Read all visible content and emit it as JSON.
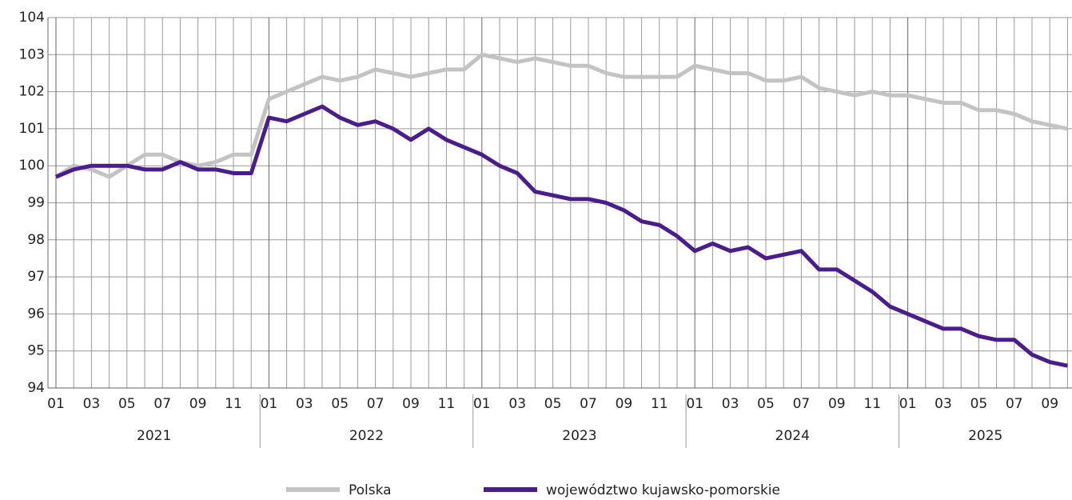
{
  "chart_data": {
    "type": "line",
    "categories": [
      "01",
      null,
      "03",
      null,
      "05",
      null,
      "07",
      null,
      "09",
      null,
      "11",
      null,
      "01",
      null,
      "03",
      null,
      "05",
      null,
      "07",
      null,
      "09",
      null,
      "11",
      null,
      "01",
      null,
      "03",
      null,
      "05",
      null,
      "07",
      null,
      "09",
      null,
      "11",
      null,
      "01",
      null,
      "03",
      null,
      "05",
      null,
      "07",
      null,
      "09",
      null,
      "11",
      null,
      "01",
      null,
      "03",
      null,
      "05",
      null,
      "07",
      null,
      "09",
      null
    ],
    "years": [
      "2021",
      "2022",
      "2023",
      "2024",
      "2025"
    ],
    "series": [
      {
        "name": "Polska",
        "color": "#c3c3c3",
        "values": [
          99.7,
          100.0,
          99.9,
          99.7,
          100.0,
          100.3,
          100.3,
          100.1,
          100.0,
          100.1,
          100.3,
          100.3,
          101.8,
          102.0,
          102.2,
          102.4,
          102.3,
          102.4,
          102.6,
          102.5,
          102.4,
          102.5,
          102.6,
          102.6,
          103.0,
          102.9,
          102.8,
          102.9,
          102.8,
          102.7,
          102.7,
          102.5,
          102.4,
          102.4,
          102.4,
          102.4,
          102.7,
          102.6,
          102.5,
          102.5,
          102.3,
          102.3,
          102.4,
          102.1,
          102.0,
          101.9,
          102.0,
          101.9,
          101.9,
          101.8,
          101.7,
          101.7,
          101.5,
          101.5,
          101.4,
          101.2,
          101.1,
          101.0
        ]
      },
      {
        "name": "województwo kujawsko-pomorskie",
        "color": "#4b1d8c",
        "values": [
          99.7,
          99.9,
          100.0,
          100.0,
          100.0,
          99.9,
          99.9,
          100.1,
          99.9,
          99.9,
          99.8,
          99.8,
          101.3,
          101.2,
          101.4,
          101.6,
          101.3,
          101.1,
          101.2,
          101.0,
          100.7,
          101.0,
          100.7,
          100.5,
          100.3,
          100.0,
          99.8,
          99.3,
          99.2,
          99.1,
          99.1,
          99.0,
          98.8,
          98.5,
          98.4,
          98.1,
          97.7,
          97.9,
          97.7,
          97.8,
          97.5,
          97.6,
          97.7,
          97.2,
          97.2,
          96.9,
          96.6,
          96.2,
          96.0,
          95.8,
          95.6,
          95.6,
          95.4,
          95.3,
          95.3,
          94.9,
          94.7,
          94.6
        ]
      }
    ],
    "ylim": [
      94,
      104
    ],
    "yticks": [
      94,
      95,
      96,
      97,
      98,
      99,
      100,
      101,
      102,
      103,
      104
    ],
    "grid": true
  }
}
